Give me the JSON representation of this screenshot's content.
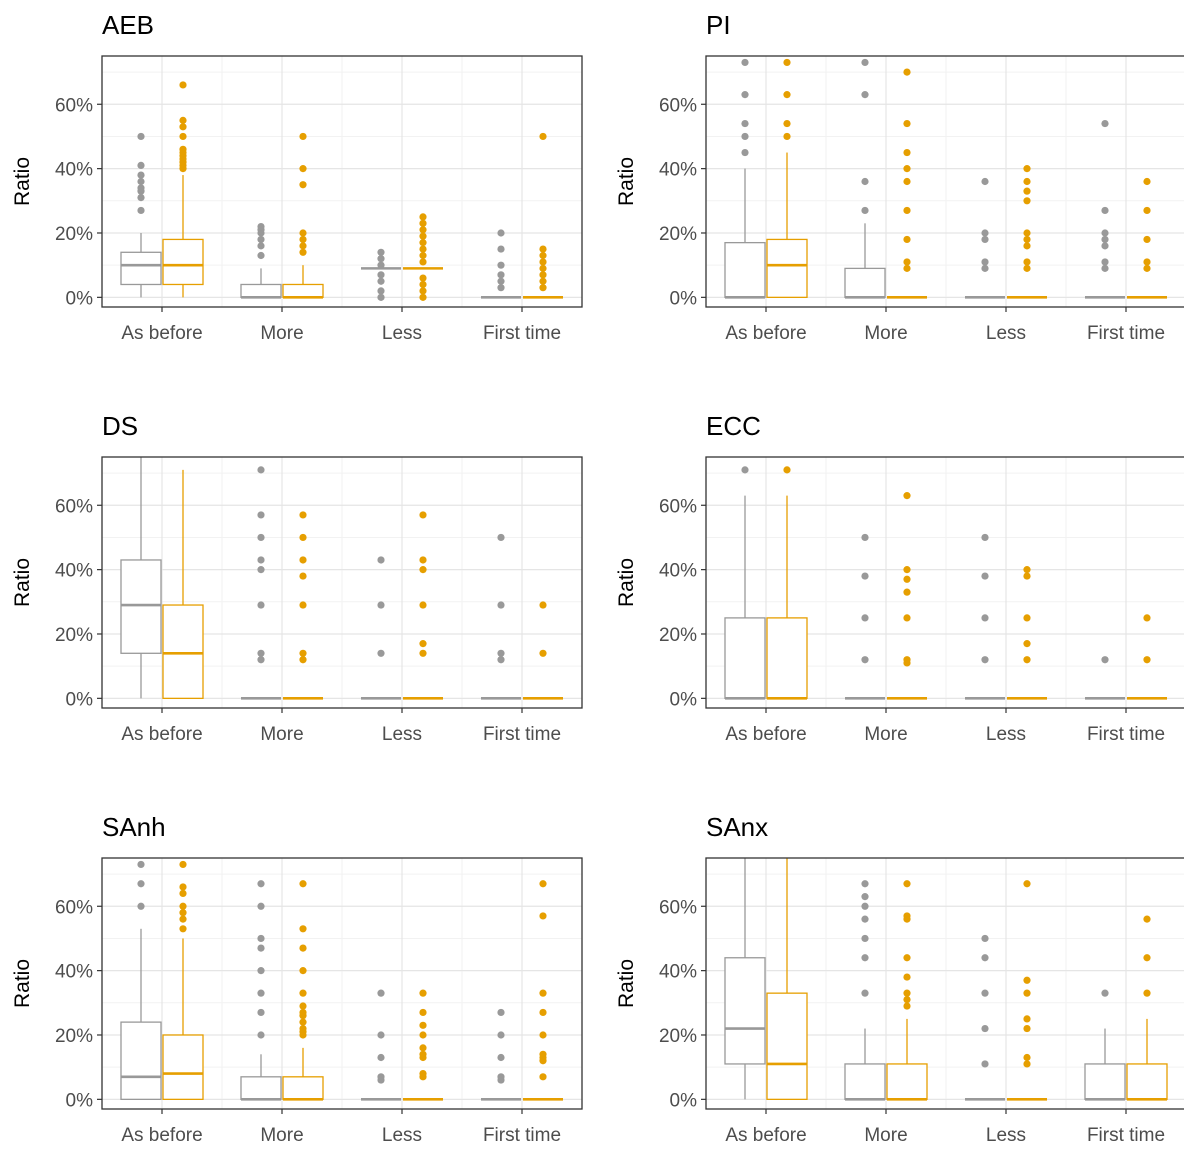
{
  "colors": {
    "group_a": "#999999",
    "group_b": "#E69F00",
    "panel_border": "#333333",
    "grid_major": "#e5e5e5",
    "grid_minor": "#f2f2f2",
    "text": "#000000",
    "tick_text": "#4d4d4d"
  },
  "chart_data": [
    {
      "type": "boxplot",
      "title": "AEB",
      "ylabel": "Ratio",
      "xlabel": "",
      "categories": [
        "As before",
        "More",
        "Less",
        "First time"
      ],
      "yticks": [
        "0%",
        "20%",
        "40%",
        "60%"
      ],
      "ylim": [
        -3,
        75
      ],
      "grid": true,
      "legend": "none",
      "groups": [
        {
          "color_key": "group_a",
          "boxes": [
            {
              "q1": 4,
              "median": 10,
              "q3": 14,
              "lower": 0,
              "upper": 20,
              "outliers": [
                27,
                31,
                33,
                34,
                36,
                38,
                41,
                50
              ]
            },
            {
              "q1": 0,
              "median": 0,
              "q3": 4,
              "lower": 0,
              "upper": 9,
              "outliers": [
                13,
                16,
                18,
                20,
                21,
                22
              ]
            },
            {
              "q1": 9,
              "median": 9,
              "q3": 9,
              "lower": 9,
              "upper": 9,
              "outliers": [
                0,
                2,
                5,
                7,
                10,
                12,
                14
              ]
            },
            {
              "q1": 0,
              "median": 0,
              "q3": 0,
              "lower": 0,
              "upper": 0,
              "outliers": [
                3,
                5,
                7,
                10,
                15,
                20
              ]
            }
          ]
        },
        {
          "color_key": "group_b",
          "boxes": [
            {
              "q1": 4,
              "median": 10,
              "q3": 18,
              "lower": 0,
              "upper": 38,
              "outliers": [
                40,
                41,
                42,
                43,
                44,
                45,
                46,
                50,
                53,
                55,
                66
              ]
            },
            {
              "q1": 0,
              "median": 0,
              "q3": 4,
              "lower": 0,
              "upper": 10,
              "outliers": [
                14,
                16,
                18,
                20,
                35,
                40,
                50
              ]
            },
            {
              "q1": 9,
              "median": 9,
              "q3": 9,
              "lower": 9,
              "upper": 9,
              "outliers": [
                0,
                2,
                4,
                6,
                11,
                13,
                15,
                17,
                19,
                21,
                23,
                25
              ]
            },
            {
              "q1": 0,
              "median": 0,
              "q3": 0,
              "lower": 0,
              "upper": 0,
              "outliers": [
                3,
                5,
                7,
                9,
                11,
                13,
                15,
                50
              ]
            }
          ]
        }
      ]
    },
    {
      "type": "boxplot",
      "title": "PI",
      "ylabel": "Ratio",
      "xlabel": "",
      "categories": [
        "As before",
        "More",
        "Less",
        "First time"
      ],
      "yticks": [
        "0%",
        "20%",
        "40%",
        "60%"
      ],
      "ylim": [
        -3,
        75
      ],
      "grid": true,
      "legend": "none",
      "groups": [
        {
          "color_key": "group_a",
          "boxes": [
            {
              "q1": 0,
              "median": 0,
              "q3": 17,
              "lower": 0,
              "upper": 40,
              "outliers": [
                45,
                50,
                54,
                63,
                73
              ]
            },
            {
              "q1": 0,
              "median": 0,
              "q3": 9,
              "lower": 0,
              "upper": 23,
              "outliers": [
                27,
                36,
                63,
                73
              ]
            },
            {
              "q1": 0,
              "median": 0,
              "q3": 0,
              "lower": 0,
              "upper": 0,
              "outliers": [
                9,
                11,
                18,
                20,
                36
              ]
            },
            {
              "q1": 0,
              "median": 0,
              "q3": 0,
              "lower": 0,
              "upper": 0,
              "outliers": [
                9,
                11,
                16,
                18,
                20,
                27,
                54
              ]
            }
          ]
        },
        {
          "color_key": "group_b",
          "boxes": [
            {
              "q1": 0,
              "median": 10,
              "q3": 18,
              "lower": 0,
              "upper": 45,
              "outliers": [
                50,
                54,
                63,
                73
              ]
            },
            {
              "q1": 0,
              "median": 0,
              "q3": 0,
              "lower": 0,
              "upper": 0,
              "outliers": [
                9,
                11,
                18,
                27,
                36,
                40,
                45,
                54,
                70
              ]
            },
            {
              "q1": 0,
              "median": 0,
              "q3": 0,
              "lower": 0,
              "upper": 0,
              "outliers": [
                9,
                11,
                16,
                18,
                20,
                30,
                33,
                36,
                40
              ]
            },
            {
              "q1": 0,
              "median": 0,
              "q3": 0,
              "lower": 0,
              "upper": 0,
              "outliers": [
                9,
                11,
                18,
                27,
                36
              ]
            }
          ]
        }
      ]
    },
    {
      "type": "boxplot",
      "title": "DS",
      "ylabel": "Ratio",
      "xlabel": "",
      "categories": [
        "As before",
        "More",
        "Less",
        "First time"
      ],
      "yticks": [
        "0%",
        "20%",
        "40%",
        "60%"
      ],
      "ylim": [
        -3,
        75
      ],
      "grid": true,
      "legend": "none",
      "groups": [
        {
          "color_key": "group_a",
          "boxes": [
            {
              "q1": 14,
              "median": 29,
              "q3": 43,
              "lower": 0,
              "upper": 75,
              "outliers": []
            },
            {
              "q1": 0,
              "median": 0,
              "q3": 0,
              "lower": 0,
              "upper": 0,
              "outliers": [
                12,
                14,
                29,
                40,
                43,
                50,
                57,
                71
              ]
            },
            {
              "q1": 0,
              "median": 0,
              "q3": 0,
              "lower": 0,
              "upper": 0,
              "outliers": [
                14,
                29,
                43
              ]
            },
            {
              "q1": 0,
              "median": 0,
              "q3": 0,
              "lower": 0,
              "upper": 0,
              "outliers": [
                12,
                14,
                29,
                50
              ]
            }
          ]
        },
        {
          "color_key": "group_b",
          "boxes": [
            {
              "q1": 0,
              "median": 14,
              "q3": 29,
              "lower": 0,
              "upper": 71,
              "outliers": []
            },
            {
              "q1": 0,
              "median": 0,
              "q3": 0,
              "lower": 0,
              "upper": 0,
              "outliers": [
                12,
                14,
                29,
                38,
                43,
                50,
                57
              ]
            },
            {
              "q1": 0,
              "median": 0,
              "q3": 0,
              "lower": 0,
              "upper": 0,
              "outliers": [
                14,
                17,
                29,
                40,
                43,
                57
              ]
            },
            {
              "q1": 0,
              "median": 0,
              "q3": 0,
              "lower": 0,
              "upper": 0,
              "outliers": [
                14,
                29
              ]
            }
          ]
        }
      ]
    },
    {
      "type": "boxplot",
      "title": "ECC",
      "ylabel": "Ratio",
      "xlabel": "",
      "categories": [
        "As before",
        "More",
        "Less",
        "First time"
      ],
      "yticks": [
        "0%",
        "20%",
        "40%",
        "60%"
      ],
      "ylim": [
        -3,
        75
      ],
      "grid": true,
      "legend": "none",
      "groups": [
        {
          "color_key": "group_a",
          "boxes": [
            {
              "q1": 0,
              "median": 0,
              "q3": 25,
              "lower": 0,
              "upper": 63,
              "outliers": [
                71
              ]
            },
            {
              "q1": 0,
              "median": 0,
              "q3": 0,
              "lower": 0,
              "upper": 0,
              "outliers": [
                12,
                25,
                38,
                50
              ]
            },
            {
              "q1": 0,
              "median": 0,
              "q3": 0,
              "lower": 0,
              "upper": 0,
              "outliers": [
                12,
                25,
                38,
                50
              ]
            },
            {
              "q1": 0,
              "median": 0,
              "q3": 0,
              "lower": 0,
              "upper": 0,
              "outliers": [
                12
              ]
            }
          ]
        },
        {
          "color_key": "group_b",
          "boxes": [
            {
              "q1": 0,
              "median": 0,
              "q3": 25,
              "lower": 0,
              "upper": 63,
              "outliers": [
                71
              ]
            },
            {
              "q1": 0,
              "median": 0,
              "q3": 0,
              "lower": 0,
              "upper": 0,
              "outliers": [
                11,
                12,
                25,
                33,
                37,
                40,
                63
              ]
            },
            {
              "q1": 0,
              "median": 0,
              "q3": 0,
              "lower": 0,
              "upper": 0,
              "outliers": [
                12,
                17,
                25,
                38,
                40
              ]
            },
            {
              "q1": 0,
              "median": 0,
              "q3": 0,
              "lower": 0,
              "upper": 0,
              "outliers": [
                12,
                25
              ]
            }
          ]
        }
      ]
    },
    {
      "type": "boxplot",
      "title": "SAnh",
      "ylabel": "Ratio",
      "xlabel": "",
      "categories": [
        "As before",
        "More",
        "Less",
        "First time"
      ],
      "yticks": [
        "0%",
        "20%",
        "40%",
        "60%"
      ],
      "ylim": [
        -3,
        75
      ],
      "grid": true,
      "legend": "none",
      "groups": [
        {
          "color_key": "group_a",
          "boxes": [
            {
              "q1": 0,
              "median": 7,
              "q3": 24,
              "lower": 0,
              "upper": 53,
              "outliers": [
                60,
                67,
                73
              ]
            },
            {
              "q1": 0,
              "median": 0,
              "q3": 7,
              "lower": 0,
              "upper": 14,
              "outliers": [
                20,
                27,
                33,
                40,
                47,
                50,
                60,
                67
              ]
            },
            {
              "q1": 0,
              "median": 0,
              "q3": 0,
              "lower": 0,
              "upper": 0,
              "outliers": [
                6,
                7,
                13,
                20,
                33
              ]
            },
            {
              "q1": 0,
              "median": 0,
              "q3": 0,
              "lower": 0,
              "upper": 0,
              "outliers": [
                6,
                7,
                13,
                20,
                27
              ]
            }
          ]
        },
        {
          "color_key": "group_b",
          "boxes": [
            {
              "q1": 0,
              "median": 8,
              "q3": 20,
              "lower": 0,
              "upper": 50,
              "outliers": [
                53,
                56,
                58,
                60,
                64,
                66,
                73
              ]
            },
            {
              "q1": 0,
              "median": 0,
              "q3": 7,
              "lower": 0,
              "upper": 16,
              "outliers": [
                20,
                21,
                22,
                24,
                26,
                27,
                29,
                33,
                40,
                47,
                53,
                67
              ]
            },
            {
              "q1": 0,
              "median": 0,
              "q3": 0,
              "lower": 0,
              "upper": 0,
              "outliers": [
                7,
                8,
                13,
                14,
                16,
                20,
                23,
                27,
                33
              ]
            },
            {
              "q1": 0,
              "median": 0,
              "q3": 0,
              "lower": 0,
              "upper": 0,
              "outliers": [
                7,
                12,
                13,
                14,
                20,
                27,
                33,
                57,
                67
              ]
            }
          ]
        }
      ]
    },
    {
      "type": "boxplot",
      "title": "SAnx",
      "ylabel": "Ratio",
      "xlabel": "",
      "categories": [
        "As before",
        "More",
        "Less",
        "First time"
      ],
      "yticks": [
        "0%",
        "20%",
        "40%",
        "60%"
      ],
      "ylim": [
        -3,
        75
      ],
      "grid": true,
      "legend": "none",
      "groups": [
        {
          "color_key": "group_a",
          "boxes": [
            {
              "q1": 11,
              "median": 22,
              "q3": 44,
              "lower": 0,
              "upper": 75,
              "outliers": []
            },
            {
              "q1": 0,
              "median": 0,
              "q3": 11,
              "lower": 0,
              "upper": 22,
              "outliers": [
                33,
                44,
                50,
                56,
                60,
                63,
                67
              ]
            },
            {
              "q1": 0,
              "median": 0,
              "q3": 0,
              "lower": 0,
              "upper": 0,
              "outliers": [
                11,
                22,
                33,
                44,
                50
              ]
            },
            {
              "q1": 0,
              "median": 0,
              "q3": 11,
              "lower": 0,
              "upper": 22,
              "outliers": [
                33
              ]
            }
          ]
        },
        {
          "color_key": "group_b",
          "boxes": [
            {
              "q1": 0,
              "median": 11,
              "q3": 33,
              "lower": 0,
              "upper": 75,
              "outliers": []
            },
            {
              "q1": 0,
              "median": 0,
              "q3": 11,
              "lower": 0,
              "upper": 25,
              "outliers": [
                29,
                31,
                33,
                38,
                44,
                56,
                57,
                67
              ]
            },
            {
              "q1": 0,
              "median": 0,
              "q3": 0,
              "lower": 0,
              "upper": 0,
              "outliers": [
                11,
                13,
                22,
                25,
                33,
                37,
                67
              ]
            },
            {
              "q1": 0,
              "median": 0,
              "q3": 11,
              "lower": 0,
              "upper": 25,
              "outliers": [
                33,
                44,
                56
              ]
            }
          ]
        }
      ]
    }
  ]
}
